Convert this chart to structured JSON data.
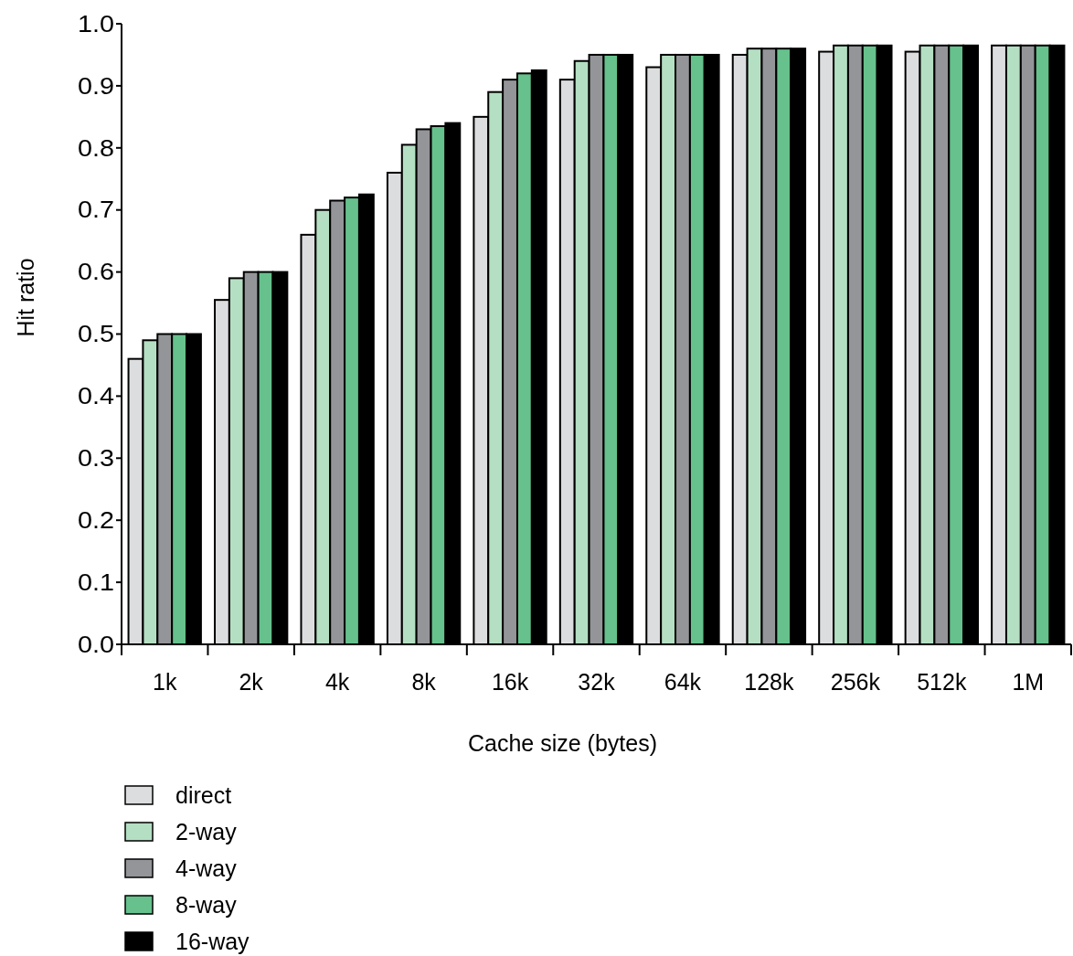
{
  "chart_data": {
    "type": "bar",
    "xlabel": "Cache size (bytes)",
    "ylabel": "Hit ratio",
    "categories": [
      "1k",
      "2k",
      "4k",
      "8k",
      "16k",
      "32k",
      "64k",
      "128k",
      "256k",
      "512k",
      "1M"
    ],
    "series": [
      {
        "name": "direct",
        "color": "#dcdddf",
        "values": [
          0.46,
          0.555,
          0.66,
          0.76,
          0.85,
          0.91,
          0.93,
          0.95,
          0.955,
          0.955,
          0.965
        ]
      },
      {
        "name": "2-way",
        "color": "#b4dfc2",
        "values": [
          0.49,
          0.59,
          0.7,
          0.805,
          0.89,
          0.94,
          0.95,
          0.96,
          0.965,
          0.965,
          0.965
        ]
      },
      {
        "name": "4-way",
        "color": "#939598",
        "values": [
          0.5,
          0.6,
          0.715,
          0.83,
          0.91,
          0.95,
          0.95,
          0.96,
          0.965,
          0.965,
          0.965
        ]
      },
      {
        "name": "8-way",
        "color": "#66c18c",
        "values": [
          0.5,
          0.6,
          0.72,
          0.835,
          0.92,
          0.95,
          0.95,
          0.96,
          0.965,
          0.965,
          0.965
        ]
      },
      {
        "name": "16-way",
        "color": "#000000",
        "values": [
          0.5,
          0.6,
          0.725,
          0.84,
          0.925,
          0.95,
          0.95,
          0.96,
          0.965,
          0.965,
          0.965
        ]
      }
    ],
    "ylim": [
      0,
      1
    ],
    "yticks": [
      {
        "value": 0,
        "label": "0.0"
      },
      {
        "value": 0.1,
        "label": "0.1"
      },
      {
        "value": 0.2,
        "label": "0.2"
      },
      {
        "value": 0.3,
        "label": "0.3"
      },
      {
        "value": 0.4,
        "label": "0.4"
      },
      {
        "value": 0.5,
        "label": "0.5"
      },
      {
        "value": 0.6,
        "label": "0.6"
      },
      {
        "value": 0.7,
        "label": "0.7"
      },
      {
        "value": 0.8,
        "label": "0.8"
      },
      {
        "value": 0.9,
        "label": "0.9"
      },
      {
        "value": 1,
        "label": "1.0"
      }
    ],
    "grid": false,
    "legend": "bottom left"
  }
}
